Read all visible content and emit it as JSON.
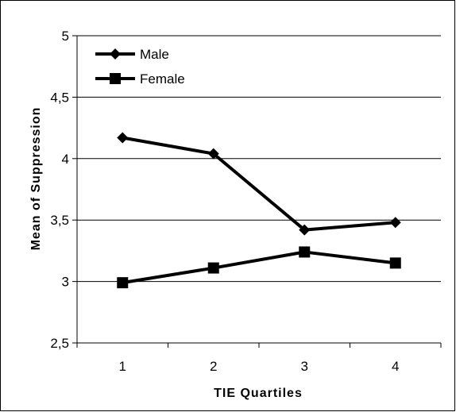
{
  "chart_data": {
    "type": "line",
    "categories": [
      "1",
      "2",
      "3",
      "4"
    ],
    "series": [
      {
        "name": "Male",
        "values": [
          4.17,
          4.04,
          3.42,
          3.48
        ],
        "marker": "diamond"
      },
      {
        "name": "Female",
        "values": [
          2.99,
          3.11,
          3.24,
          3.15
        ],
        "marker": "square"
      }
    ],
    "xlabel": "TIE Quartiles",
    "ylabel": "Mean of Suppression",
    "ylim": [
      2.5,
      5
    ],
    "yticks": [
      "2,5",
      "3",
      "3,5",
      "4",
      "4,5",
      "5"
    ],
    "grid": true,
    "legend_position": "top-left",
    "colors": {
      "line": "#000000",
      "grid": "#000000",
      "background": "#ffffff"
    }
  }
}
